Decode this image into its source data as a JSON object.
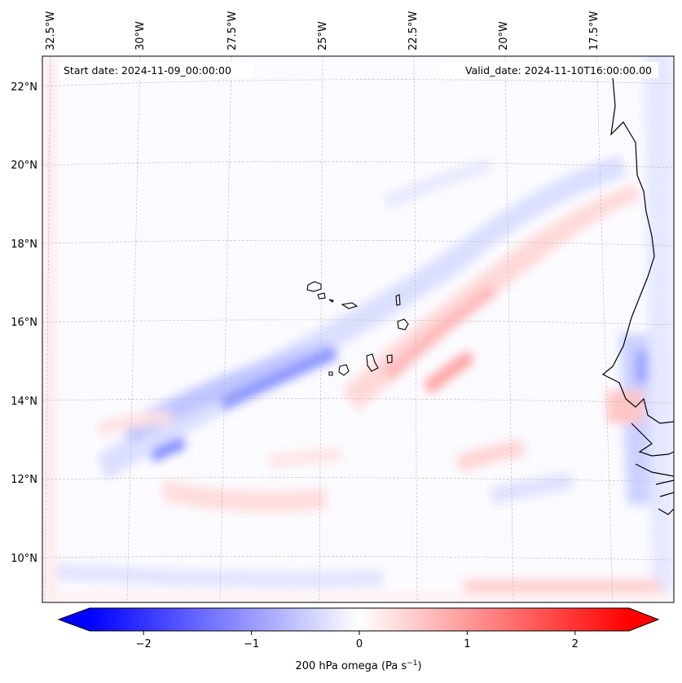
{
  "header": {
    "start_date": "Start date: 2024-11-09_00:00:00",
    "valid_date": "Valid_date: 2024-11-10T16:00:00.00"
  },
  "axes": {
    "lon_labels": [
      "32.5°W",
      "30°W",
      "27.5°W",
      "25°W",
      "22.5°W",
      "20°W",
      "17.5°W"
    ],
    "lat_labels": [
      "22°N",
      "20°N",
      "18°N",
      "16°N",
      "14°N",
      "12°N",
      "10°N"
    ]
  },
  "colorbar": {
    "label_prefix": "200 hPa omega (Pa s",
    "label_exp": "−1",
    "label_suffix": ")",
    "ticks": [
      "−2",
      "−1",
      "0",
      "1",
      "2"
    ],
    "tick_values": [
      -2,
      -1,
      0,
      1,
      2
    ],
    "range": [
      -2.5,
      2.5
    ],
    "negative_color": "#0000ff",
    "zero_color": "#ffffff",
    "positive_color": "#ff0000"
  },
  "map": {
    "field": "200 hPa omega",
    "grid": true,
    "coastline_color": "#000000"
  }
}
